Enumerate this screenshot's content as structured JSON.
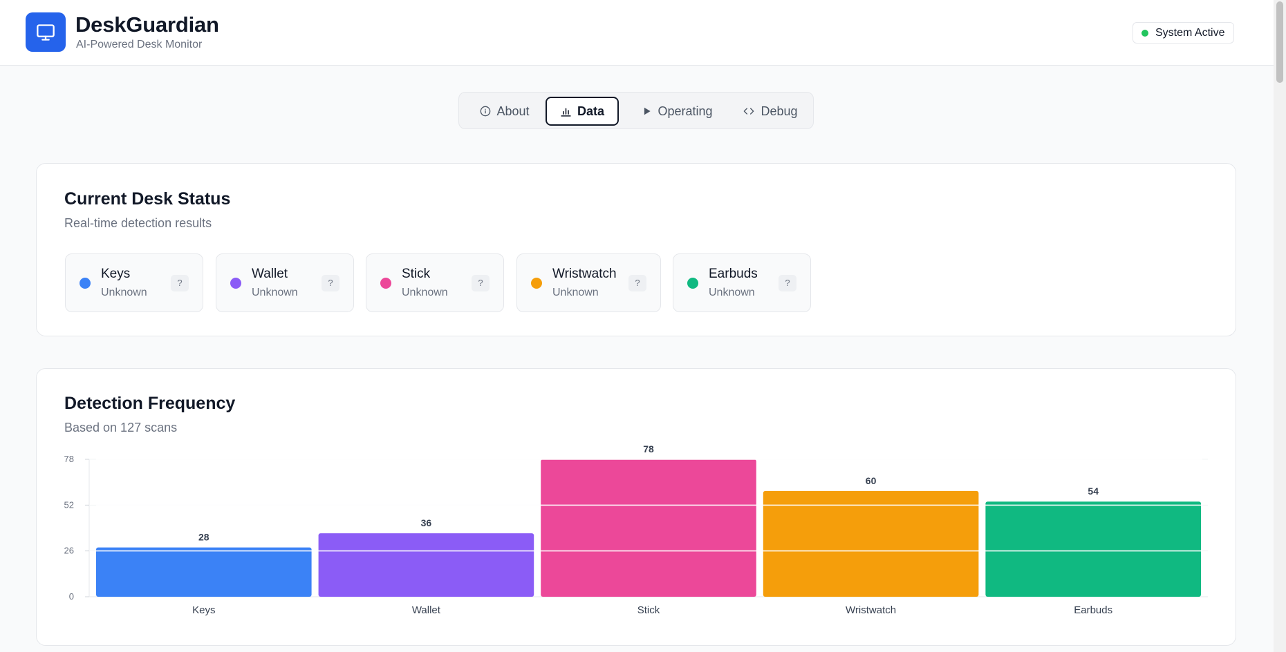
{
  "app": {
    "title": "DeskGuardian",
    "subtitle": "AI-Powered Desk Monitor",
    "status": "System Active"
  },
  "tabs": [
    {
      "label": "About",
      "icon": "info-icon",
      "active": false
    },
    {
      "label": "Data",
      "icon": "bar-chart-icon",
      "active": true
    },
    {
      "label": "Operating",
      "icon": "play-icon",
      "active": false
    },
    {
      "label": "Debug",
      "icon": "code-icon",
      "active": false
    }
  ],
  "status_card": {
    "title": "Current Desk Status",
    "subtitle": "Real-time detection results",
    "items": [
      {
        "name": "Keys",
        "state": "Unknown",
        "badge": "?",
        "color": "#3b82f6"
      },
      {
        "name": "Wallet",
        "state": "Unknown",
        "badge": "?",
        "color": "#8b5cf6"
      },
      {
        "name": "Stick",
        "state": "Unknown",
        "badge": "?",
        "color": "#ec4899"
      },
      {
        "name": "Wristwatch",
        "state": "Unknown",
        "badge": "?",
        "color": "#f59e0b"
      },
      {
        "name": "Earbuds",
        "state": "Unknown",
        "badge": "?",
        "color": "#10b981"
      }
    ]
  },
  "frequency_card": {
    "title": "Detection Frequency",
    "subtitle": "Based on 127 scans"
  },
  "chart_data": {
    "type": "bar",
    "categories": [
      "Keys",
      "Wallet",
      "Stick",
      "Wristwatch",
      "Earbuds"
    ],
    "values": [
      28,
      36,
      78,
      60,
      54
    ],
    "colors": [
      "#3b82f6",
      "#8b5cf6",
      "#ec4899",
      "#f59e0b",
      "#10b981"
    ],
    "yticks": [
      0,
      26,
      52,
      78
    ],
    "ylim": [
      0,
      78
    ],
    "grid": true,
    "title": "",
    "xlabel": "",
    "ylabel": ""
  }
}
